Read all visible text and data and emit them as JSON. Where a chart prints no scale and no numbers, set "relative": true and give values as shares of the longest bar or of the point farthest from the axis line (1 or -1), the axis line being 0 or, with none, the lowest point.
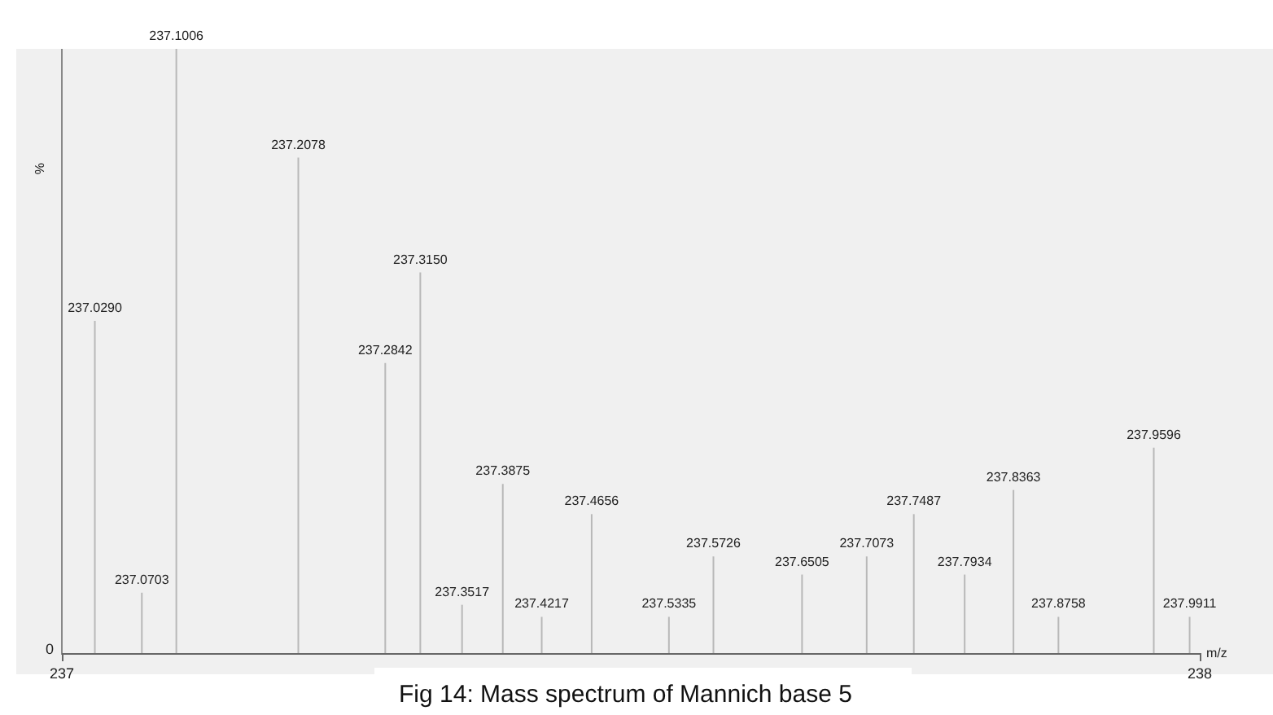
{
  "chart_data": {
    "type": "bar",
    "title": "Fig 14: Mass spectrum of Mannich base 5",
    "xlabel": "m/z",
    "ylabel": "%",
    "relative": true,
    "color": "#b8b8b8",
    "x": [
      237.029,
      237.0703,
      237.1006,
      237.2078,
      237.2842,
      237.315,
      237.3517,
      237.3875,
      237.4217,
      237.4656,
      237.5335,
      237.5726,
      237.6505,
      237.7073,
      237.7487,
      237.7934,
      237.8363,
      237.8758,
      237.9596,
      237.9911
    ],
    "values": [
      0.55,
      0.1,
      1,
      0.82,
      0.48,
      0.63,
      0.08,
      0.28,
      0.06,
      0.23,
      0.06,
      0.16,
      0.13,
      0.16,
      0.23,
      0.13,
      0.27,
      0.06,
      0.34,
      0.06
    ],
    "annotations": [
      "0",
      {
        "text": "237.0290",
        "x": 237.029,
        "y": 0.55
      },
      {
        "text": "237.0703",
        "x": 237.0703,
        "y": 0.1
      },
      {
        "text": "237.1006",
        "x": 237.1006,
        "y": 1
      },
      {
        "text": "237.2078",
        "x": 237.2078,
        "y": 0.82
      },
      {
        "text": "237.2842",
        "x": 237.2842,
        "y": 0.48
      },
      {
        "text": "237.3150",
        "x": 237.315,
        "y": 0.63
      },
      {
        "text": "237.3517",
        "x": 237.3517,
        "y": 0.08
      },
      {
        "text": "237.3875",
        "x": 237.3875,
        "y": 0.28
      },
      {
        "text": "237.4217",
        "x": 237.4217,
        "y": 0.06
      },
      {
        "text": "237.4656",
        "x": 237.4656,
        "y": 0.23
      },
      {
        "text": "237.5335",
        "x": 237.5335,
        "y": 0.06
      },
      {
        "text": "237.5726",
        "x": 237.5726,
        "y": 0.16
      },
      {
        "text": "237.6505",
        "x": 237.6505,
        "y": 0.13
      },
      {
        "text": "237.7073",
        "x": 237.7073,
        "y": 0.16
      },
      {
        "text": "237.7487",
        "x": 237.7487,
        "y": 0.23
      },
      {
        "text": "237.7934",
        "x": 237.7934,
        "y": 0.13
      },
      {
        "text": "237.8363",
        "x": 237.8363,
        "y": 0.27
      },
      {
        "text": "237.8758",
        "x": 237.8758,
        "y": 0.06
      },
      {
        "text": "237.9596",
        "x": 237.9596,
        "y": 0.34
      },
      {
        "text": "237.9911",
        "x": 237.9911,
        "y": 0.06
      }
    ],
    "xlim": [
      237,
      238
    ],
    "xticks": [
      237,
      238
    ],
    "grid": false
  }
}
